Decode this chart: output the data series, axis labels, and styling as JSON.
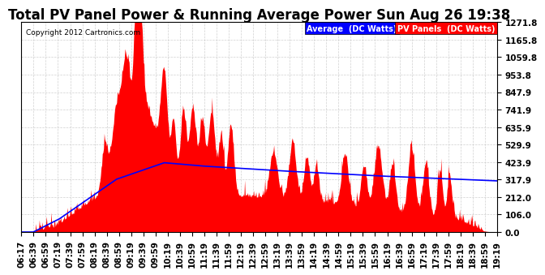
{
  "title": "Total PV Panel Power & Running Average Power Sun Aug 26 19:38",
  "copyright": "Copyright 2012 Cartronics.com",
  "legend_avg": "Average  (DC Watts)",
  "legend_pv": "PV Panels  (DC Watts)",
  "ylabel_values": [
    0.0,
    106.0,
    212.0,
    317.9,
    423.9,
    529.9,
    635.9,
    741.9,
    847.9,
    953.8,
    1059.8,
    1165.8,
    1271.8
  ],
  "ytick_max": 1271.8,
  "background_color": "#ffffff",
  "plot_bg_color": "#ffffff",
  "grid_color": "#cccccc",
  "pv_color": "#ff0000",
  "avg_color": "#0000ff",
  "title_fontsize": 12,
  "tick_label_fontsize": 7.5,
  "x_labels": [
    "06:17",
    "06:39",
    "06:59",
    "07:19",
    "07:39",
    "07:59",
    "08:19",
    "08:39",
    "08:59",
    "09:19",
    "09:39",
    "09:59",
    "10:19",
    "10:39",
    "10:59",
    "11:19",
    "11:39",
    "11:59",
    "12:19",
    "12:39",
    "12:59",
    "13:19",
    "13:39",
    "13:59",
    "14:19",
    "14:39",
    "14:59",
    "15:19",
    "15:39",
    "15:59",
    "16:19",
    "16:39",
    "16:59",
    "17:19",
    "17:39",
    "17:59",
    "18:19",
    "18:39",
    "18:59",
    "19:19"
  ]
}
